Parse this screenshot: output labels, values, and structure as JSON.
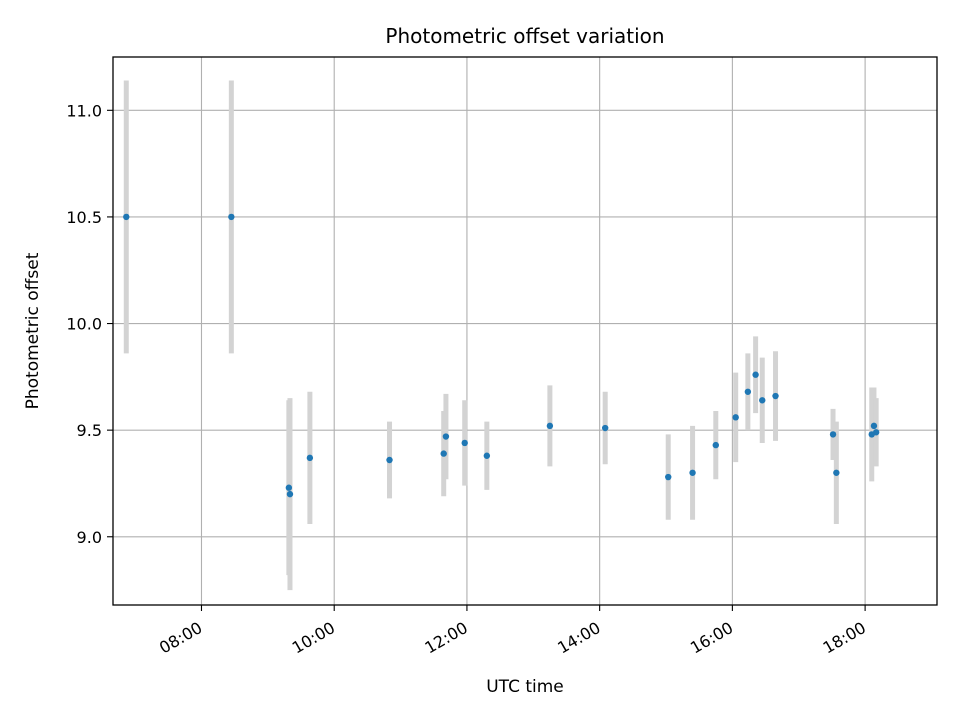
{
  "chart_data": {
    "type": "scatter",
    "title": "Photometric offset variation",
    "xlabel": "UTC time",
    "ylabel": "Photometric offset",
    "x_unit": "hours (UTC)",
    "xlim": [
      "06:40",
      "19:05"
    ],
    "ylim": [
      8.68,
      11.25
    ],
    "x_ticks": [
      "08:00",
      "10:00",
      "12:00",
      "14:00",
      "16:00",
      "18:00"
    ],
    "y_ticks": [
      "9.0",
      "9.5",
      "10.0",
      "10.5",
      "11.0"
    ],
    "grid": true,
    "legend": "none",
    "colors": {
      "point": "#1f77b4",
      "errorbar": "#d3d3d3",
      "grid": "#b0b0b0"
    },
    "series": [
      {
        "points": [
          {
            "time": "06:52",
            "y": 10.5,
            "err": 0.64
          },
          {
            "time": "08:27",
            "y": 10.5,
            "err": 0.64
          },
          {
            "time": "09:19",
            "y": 9.23,
            "err": 0.41
          },
          {
            "time": "09:20",
            "y": 9.2,
            "err": 0.45
          },
          {
            "time": "09:38",
            "y": 9.37,
            "err": 0.31
          },
          {
            "time": "10:50",
            "y": 9.36,
            "err": 0.18
          },
          {
            "time": "11:39",
            "y": 9.39,
            "err": 0.2
          },
          {
            "time": "11:41",
            "y": 9.47,
            "err": 0.2
          },
          {
            "time": "11:58",
            "y": 9.44,
            "err": 0.2
          },
          {
            "time": "12:18",
            "y": 9.38,
            "err": 0.16
          },
          {
            "time": "13:15",
            "y": 9.52,
            "err": 0.19
          },
          {
            "time": "14:05",
            "y": 9.51,
            "err": 0.17
          },
          {
            "time": "15:02",
            "y": 9.28,
            "err": 0.2
          },
          {
            "time": "15:24",
            "y": 9.3,
            "err": 0.22
          },
          {
            "time": "15:45",
            "y": 9.43,
            "err": 0.16
          },
          {
            "time": "16:03",
            "y": 9.56,
            "err": 0.21
          },
          {
            "time": "16:14",
            "y": 9.68,
            "err": 0.18
          },
          {
            "time": "16:21",
            "y": 9.76,
            "err": 0.18
          },
          {
            "time": "16:27",
            "y": 9.64,
            "err": 0.2
          },
          {
            "time": "16:39",
            "y": 9.66,
            "err": 0.21
          },
          {
            "time": "17:31",
            "y": 9.48,
            "err": 0.12
          },
          {
            "time": "17:34",
            "y": 9.3,
            "err": 0.24
          },
          {
            "time": "18:06",
            "y": 9.48,
            "err": 0.22
          },
          {
            "time": "18:08",
            "y": 9.52,
            "err": 0.18
          },
          {
            "time": "18:10",
            "y": 9.49,
            "err": 0.16
          }
        ]
      }
    ]
  }
}
